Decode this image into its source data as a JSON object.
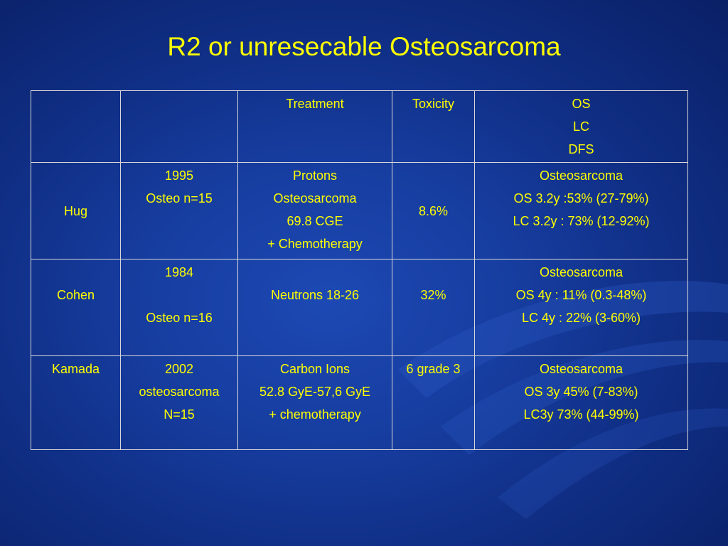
{
  "title": "R2 or unresecable Osteosarcoma",
  "header": {
    "col1": "",
    "col2": "",
    "treatment": "Treatment",
    "toxicity": "Toxicity",
    "outcome": [
      "OS",
      "LC",
      "DFS"
    ]
  },
  "rows": [
    {
      "author": "Hug",
      "study": [
        "1995",
        "Osteo n=15"
      ],
      "treatment": [
        "Protons",
        "Osteosarcoma",
        "69.8 CGE",
        "+ Chemotherapy"
      ],
      "toxicity": "8.6%",
      "outcome": [
        "Osteosarcoma",
        "OS 3.2y :53% (27-79%)",
        "LC 3.2y : 73% (12-92%)"
      ]
    },
    {
      "author": "Cohen",
      "study": [
        "1984",
        "Osteo n=16"
      ],
      "treatment": [
        "Neutrons 18-26"
      ],
      "toxicity": "32%",
      "outcome": [
        "Osteosarcoma",
        "OS 4y : 11% (0.3-48%)",
        "LC 4y : 22% (3-60%)"
      ]
    },
    {
      "author": "Kamada",
      "study": [
        "2002",
        "osteosarcoma",
        "N=15"
      ],
      "treatment": [
        "Carbon Ions",
        "52.8 GyE-57,6 GyE",
        "+ chemotherapy"
      ],
      "toxicity": "6 grade 3",
      "outcome": [
        "Osteosarcoma",
        "OS 3y 45% (7-83%)",
        "LC3y 73% (44-99%)"
      ]
    }
  ],
  "colors": {
    "background": "#163c9e",
    "text": "#ffff00",
    "grid": "#d8d8d8"
  }
}
